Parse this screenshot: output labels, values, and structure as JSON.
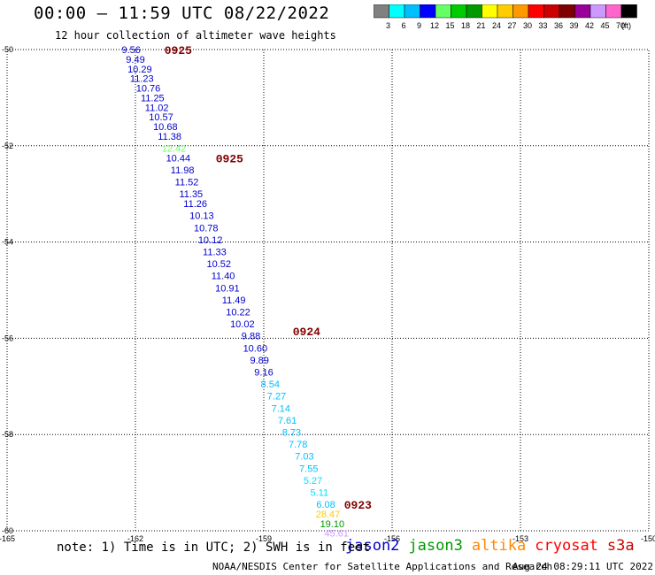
{
  "title": "00:00 – 11:59 UTC 08/22/2022",
  "subtitle": "12 hour collection of altimeter wave heights",
  "footer_note": "note: 1) Time is in UTC; 2) SWH is in feet",
  "credit": "NOAA/NESDIS Center for Satellite Applications and Research",
  "timestamp": "Aug 24 08:29:11 UTC 2022",
  "color_scale": {
    "unit": "(ft)",
    "bins": [
      {
        "label": "3",
        "color": "#808080"
      },
      {
        "label": "6",
        "color": "#00ffff"
      },
      {
        "label": "9",
        "color": "#00bfff"
      },
      {
        "label": "12",
        "color": "#0000ff"
      },
      {
        "label": "15",
        "color": "#66ff66"
      },
      {
        "label": "18",
        "color": "#00cc00"
      },
      {
        "label": "21",
        "color": "#009900"
      },
      {
        "label": "24",
        "color": "#ffff00"
      },
      {
        "label": "27",
        "color": "#ffcc00"
      },
      {
        "label": "30",
        "color": "#ff9900"
      },
      {
        "label": "33",
        "color": "#ff0000"
      },
      {
        "label": "36",
        "color": "#cc0000"
      },
      {
        "label": "39",
        "color": "#800000"
      },
      {
        "label": "42",
        "color": "#990099"
      },
      {
        "label": "45",
        "color": "#cc99ff"
      },
      {
        "label": "70",
        "color": "#ff66cc"
      },
      {
        "label": "",
        "color": "#000000"
      }
    ]
  },
  "satellites": [
    {
      "name": "jason2",
      "color": "#0000cc"
    },
    {
      "name": "jason3",
      "color": "#009900"
    },
    {
      "name": "altika",
      "color": "#ff8800"
    },
    {
      "name": "cryosat",
      "color": "#ff0000"
    },
    {
      "name": "s3a",
      "color": "#cc0000"
    }
  ],
  "chart_data": {
    "type": "scatter",
    "title": "00:00 – 11:59 UTC 08/22/2022",
    "xlabel": "",
    "ylabel": "",
    "xlim": [
      -165,
      -150
    ],
    "ylim": [
      -60,
      -50
    ],
    "x_ticks": [
      -165,
      -162,
      -159,
      -156,
      -153,
      -150
    ],
    "y_ticks": [
      -50,
      -52,
      -54,
      -56,
      -58,
      -60
    ],
    "grid": true,
    "points": [
      {
        "lon": -162.1,
        "lat": -50.0,
        "v": "9.56",
        "c": "#0000cc"
      },
      {
        "lon": -162.0,
        "lat": -50.2,
        "v": "9.49",
        "c": "#0000cc"
      },
      {
        "lon": -161.9,
        "lat": -50.4,
        "v": "10.29",
        "c": "#0000cc"
      },
      {
        "lon": -161.85,
        "lat": -50.6,
        "v": "11.23",
        "c": "#0000cc"
      },
      {
        "lon": -161.7,
        "lat": -50.8,
        "v": "10.76",
        "c": "#0000cc"
      },
      {
        "lon": -161.6,
        "lat": -51.0,
        "v": "11.25",
        "c": "#0000cc"
      },
      {
        "lon": -161.5,
        "lat": -51.2,
        "v": "11.02",
        "c": "#0000cc"
      },
      {
        "lon": -161.4,
        "lat": -51.4,
        "v": "10.57",
        "c": "#0000cc"
      },
      {
        "lon": -161.3,
        "lat": -51.6,
        "v": "10.68",
        "c": "#0000cc"
      },
      {
        "lon": -161.2,
        "lat": -51.8,
        "v": "11.38",
        "c": "#0000cc"
      },
      {
        "lon": -161.1,
        "lat": -52.05,
        "v": "12.42",
        "c": "#66ff66"
      },
      {
        "lon": -161.0,
        "lat": -52.25,
        "v": "10.44",
        "c": "#0000cc"
      },
      {
        "lon": -160.9,
        "lat": -52.5,
        "v": "11.98",
        "c": "#0000cc"
      },
      {
        "lon": -160.8,
        "lat": -52.75,
        "v": "11.52",
        "c": "#0000cc"
      },
      {
        "lon": -160.7,
        "lat": -53.0,
        "v": "11.35",
        "c": "#0000cc"
      },
      {
        "lon": -160.6,
        "lat": -53.2,
        "v": "11.26",
        "c": "#0000cc"
      },
      {
        "lon": -160.45,
        "lat": -53.45,
        "v": "10.13",
        "c": "#0000cc"
      },
      {
        "lon": -160.35,
        "lat": -53.7,
        "v": "10.78",
        "c": "#0000cc"
      },
      {
        "lon": -160.25,
        "lat": -53.95,
        "v": "10.12",
        "c": "#0000cc"
      },
      {
        "lon": -160.15,
        "lat": -54.2,
        "v": "11.33",
        "c": "#0000cc"
      },
      {
        "lon": -160.05,
        "lat": -54.45,
        "v": "10.52",
        "c": "#0000cc"
      },
      {
        "lon": -159.95,
        "lat": -54.7,
        "v": "11.40",
        "c": "#0000cc"
      },
      {
        "lon": -159.85,
        "lat": -54.95,
        "v": "10.91",
        "c": "#0000cc"
      },
      {
        "lon": -159.7,
        "lat": -55.2,
        "v": "11.49",
        "c": "#0000cc"
      },
      {
        "lon": -159.6,
        "lat": -55.45,
        "v": "10.22",
        "c": "#0000cc"
      },
      {
        "lon": -159.5,
        "lat": -55.7,
        "v": "10.02",
        "c": "#0000cc"
      },
      {
        "lon": -159.3,
        "lat": -55.95,
        "v": "9.88",
        "c": "#0000cc"
      },
      {
        "lon": -159.2,
        "lat": -56.2,
        "v": "10.60",
        "c": "#0000cc"
      },
      {
        "lon": -159.1,
        "lat": -56.45,
        "v": "9.89",
        "c": "#0000cc"
      },
      {
        "lon": -159.0,
        "lat": -56.7,
        "v": "9.16",
        "c": "#0000cc"
      },
      {
        "lon": -158.85,
        "lat": -56.95,
        "v": "8.54",
        "c": "#00bfff"
      },
      {
        "lon": -158.7,
        "lat": -57.2,
        "v": "7.27",
        "c": "#00bfff"
      },
      {
        "lon": -158.6,
        "lat": -57.45,
        "v": "7.14",
        "c": "#00bfff"
      },
      {
        "lon": -158.45,
        "lat": -57.7,
        "v": "7.61",
        "c": "#00bfff"
      },
      {
        "lon": -158.35,
        "lat": -57.95,
        "v": "8.73",
        "c": "#00bfff"
      },
      {
        "lon": -158.2,
        "lat": -58.2,
        "v": "7.78",
        "c": "#00bfff"
      },
      {
        "lon": -158.05,
        "lat": -58.45,
        "v": "7.03",
        "c": "#00bfff"
      },
      {
        "lon": -157.95,
        "lat": -58.7,
        "v": "7.55",
        "c": "#00bfff"
      },
      {
        "lon": -157.85,
        "lat": -58.95,
        "v": "5.27",
        "c": "#00e0ff"
      },
      {
        "lon": -157.7,
        "lat": -59.2,
        "v": "5.11",
        "c": "#00e0ff"
      },
      {
        "lon": -157.55,
        "lat": -59.45,
        "v": "6.08",
        "c": "#00bfff"
      },
      {
        "lon": -157.5,
        "lat": -59.65,
        "v": "28.47",
        "c": "#ffcc00"
      },
      {
        "lon": -157.4,
        "lat": -59.85,
        "v": "19.10",
        "c": "#009900"
      },
      {
        "lon": -157.3,
        "lat": -60.05,
        "v": "45.61",
        "c": "#cc99ff"
      }
    ],
    "time_tags": [
      {
        "lon": -161.0,
        "lat": -50.0,
        "label": "0925"
      },
      {
        "lon": -159.8,
        "lat": -52.25,
        "label": "0925"
      },
      {
        "lon": -158.0,
        "lat": -55.85,
        "label": "0924"
      },
      {
        "lon": -156.8,
        "lat": -59.45,
        "label": "0923"
      }
    ]
  }
}
